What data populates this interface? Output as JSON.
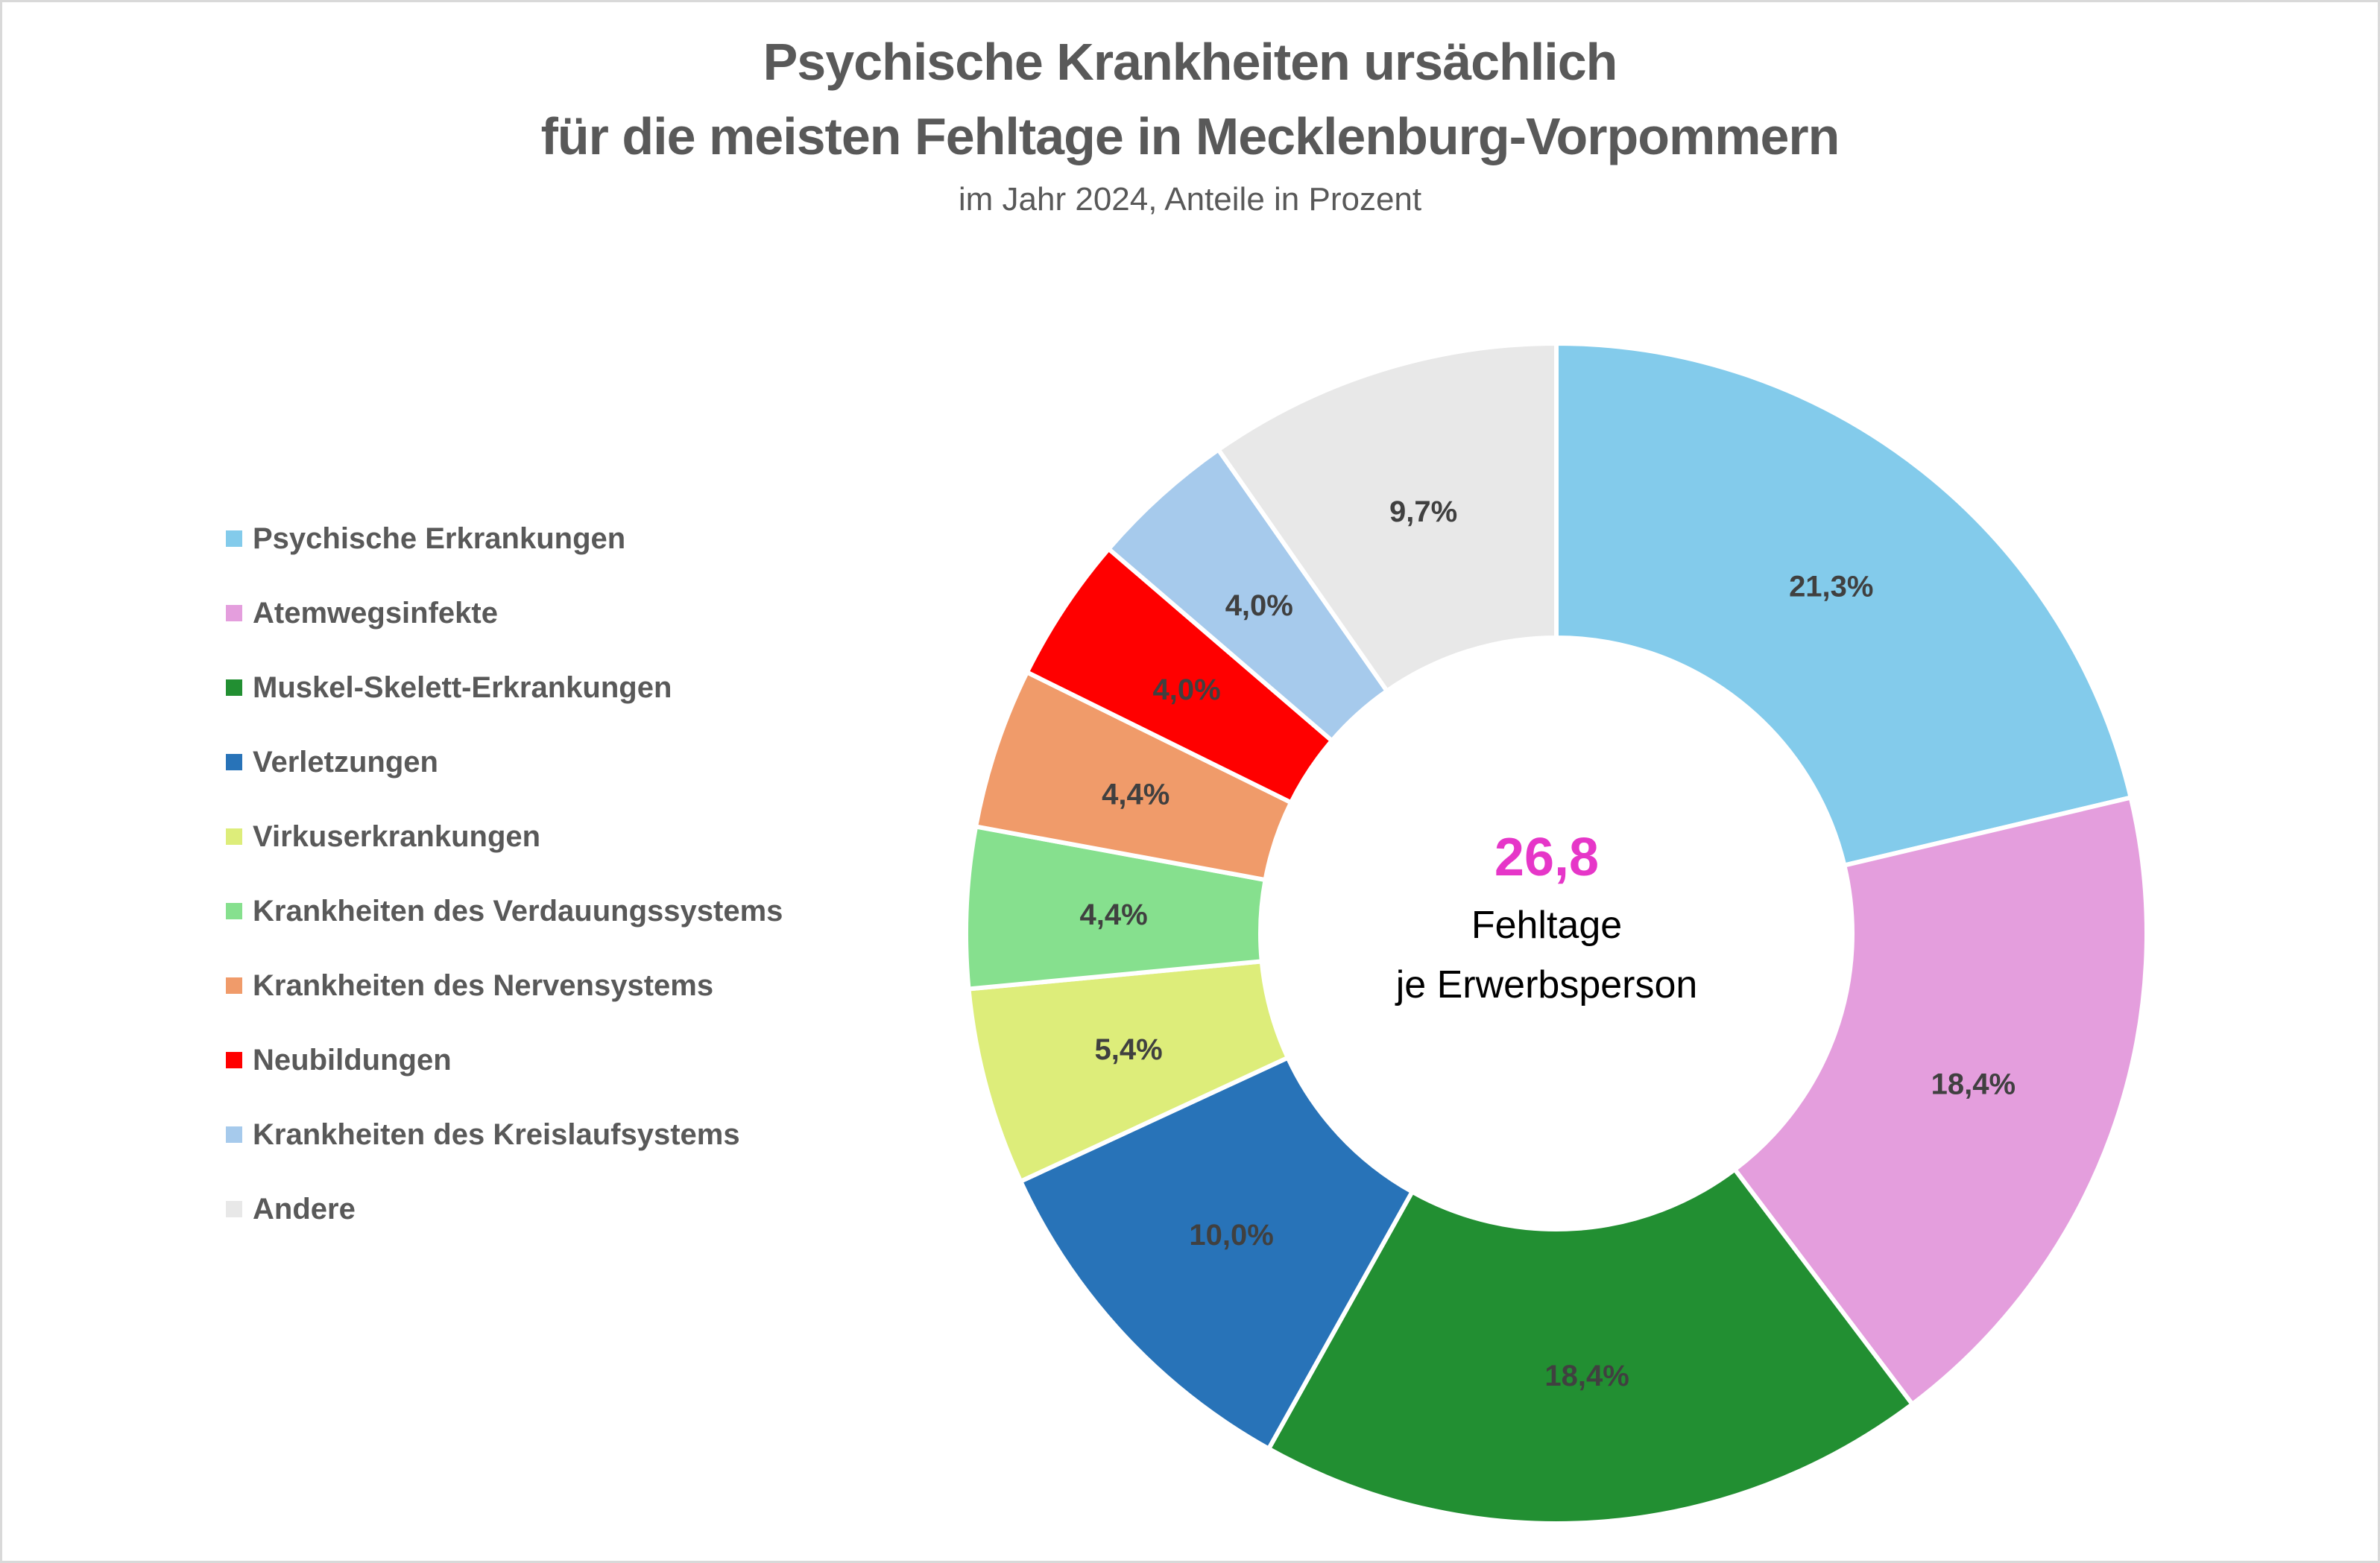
{
  "chart_data": {
    "type": "pie",
    "variant": "donut",
    "title": [
      "Psychische Krankheiten ursächlich",
      "für die meisten Fehltage in Mecklenburg-Vorpommern"
    ],
    "subtitle": "im Jahr 2024, Anteile in Prozent",
    "center": {
      "value": "26,8",
      "line1": "Fehltage",
      "line2": "je Erwerbsperson",
      "value_color": "#E636C8"
    },
    "legend_position": "left",
    "categories": [
      "Psychische Erkrankungen",
      "Atemwegsinfekte",
      "Muskel-Skelett-Erkrankungen",
      "Verletzungen",
      "Virkuserkrankungen",
      "Krankheiten des Verdauungssystems",
      "Krankheiten des Nervensystems",
      "Neubildungen",
      "Krankheiten des Kreislaufsystems",
      "Andere"
    ],
    "values": [
      21.3,
      18.4,
      18.4,
      10.0,
      5.4,
      4.4,
      4.4,
      4.0,
      4.0,
      9.7
    ],
    "labels": [
      "21,3%",
      "18,4%",
      "18,4%",
      "10,0%",
      "5,4%",
      "4,4%",
      "4,4%",
      "4,0%",
      "4,0%",
      "9,7%"
    ],
    "colors": [
      "#83CBEB",
      "#E49EDD",
      "#228F32",
      "#2873B8",
      "#DDED7A",
      "#86E08E",
      "#F09B6A",
      "#FF0000",
      "#A6CAEC",
      "#E8E8E8"
    ]
  }
}
